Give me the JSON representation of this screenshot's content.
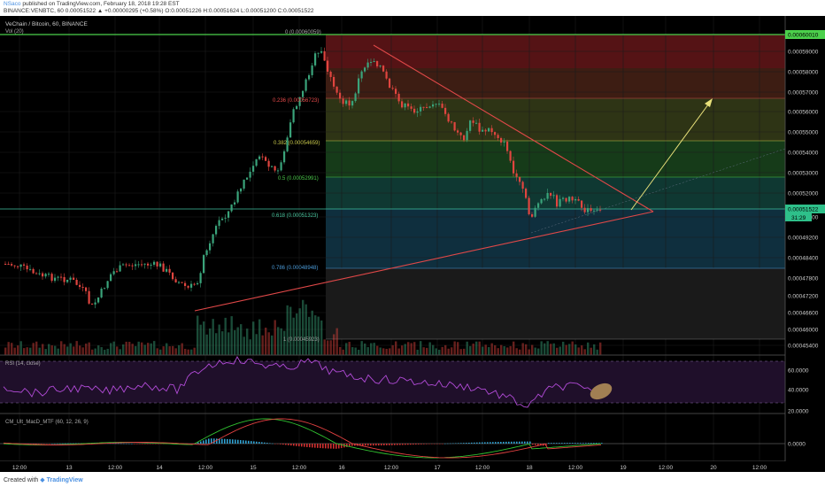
{
  "header": {
    "author": "NSaco",
    "published": "published on TradingView.com, February 18, 2018 19:28 EST",
    "ohlc_line": "BINANCE:VENBTC, 60  0.00051522 ▲ +0.00000295 (+0.58%) O:0.00051226 H:0.00051624 L:0.00051200 C:0.00051522"
  },
  "chart": {
    "title": "VeChain / Bitcoin, 60, BINANCE",
    "volume_label": "Vol (20)",
    "rsi_label": "RSI (14, close)",
    "macd_label": "CM_Ult_MacD_MTF (60, 12, 26, 9)"
  },
  "price_axis": {
    "ticks": [
      "0.00059000",
      "0.00058000",
      "0.00057000",
      "0.00056000",
      "0.00055000",
      "0.00054000",
      "0.00053000",
      "0.00052000",
      "0.00050000",
      "0.00049200",
      "0.00048400",
      "0.00047800",
      "0.00047200",
      "0.00046600",
      "0.00046000",
      "0.00045400"
    ],
    "high_tag": "0.00060010",
    "last_tag": "0.00051522",
    "countdown": "31:29"
  },
  "rsi_axis": {
    "ticks": [
      "60.0000",
      "40.0000",
      "20.0000"
    ]
  },
  "macd_axis": {
    "ticks": [
      "0.0000"
    ]
  },
  "fib_levels": [
    {
      "label": "0 (0.00060059)",
      "color": "#aaaaaa"
    },
    {
      "label": "0.236 (0.00056723)",
      "color": "#e84b4b"
    },
    {
      "label": "0.382 (0.00054659)",
      "color": "#c8c84b"
    },
    {
      "label": "0.5 (0.00052991)",
      "color": "#4bc84b"
    },
    {
      "label": "0.618 (0.00051323)",
      "color": "#4bc8a0"
    },
    {
      "label": "0.786 (0.00048948)",
      "color": "#4b9bd8"
    },
    {
      "label": "1 (0.00045923)",
      "color": "#9a9a9a"
    }
  ],
  "time_axis": {
    "ticks": [
      "12:00",
      "13",
      "12:00",
      "14",
      "12:00",
      "15",
      "12:00",
      "16",
      "12:00",
      "17",
      "12:00",
      "18",
      "12:00",
      "19",
      "12:00",
      "20",
      "12:00"
    ]
  },
  "footer": {
    "created": "Created with",
    "brand": "TradingView"
  },
  "colors": {
    "up": "#3aa37a",
    "down": "#e0453f",
    "rsi": "#b24bd8",
    "macd": "#30c030",
    "signal": "#e04040"
  }
}
